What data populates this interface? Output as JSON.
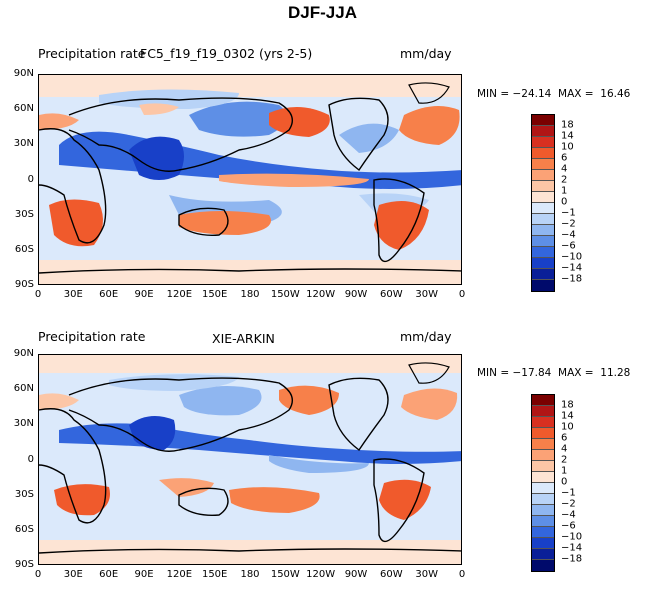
{
  "figure": {
    "title": "DJF-JJA"
  },
  "colorbar": {
    "labels": [
      "18",
      "14",
      "10",
      "6",
      "4",
      "2",
      "1",
      "0",
      "−1",
      "−2",
      "−4",
      "−6",
      "−10",
      "−14",
      "−18"
    ],
    "colors": [
      "#7a0000",
      "#b01515",
      "#d83020",
      "#f05a2c",
      "#f7804a",
      "#fba276",
      "#fcc6a6",
      "#fde4d4",
      "#dbe9fb",
      "#b8d3f7",
      "#8fb6f0",
      "#5e8fe6",
      "#3366dd",
      "#1840c8",
      "#0a1f98",
      "#000a6b"
    ]
  },
  "chart_data": [
    {
      "type": "heatmap",
      "left_label": "Precipitation rate",
      "center_label": "FC5_f19_f19_0302 (yrs 2-5)",
      "units": "mm/day",
      "min": -24.14,
      "max": 16.46,
      "min_text": "MIN = −24.14",
      "max_text": "MAX =  16.46",
      "ylabels": [
        "90N",
        "60N",
        "30N",
        "0",
        "30S",
        "60S",
        "90S"
      ],
      "xlabels": [
        "0",
        "30E",
        "60E",
        "90E",
        "120E",
        "150E",
        "180",
        "150W",
        "120W",
        "90W",
        "60W",
        "30W",
        "0"
      ],
      "ylim": [
        -90,
        90
      ],
      "xlim": [
        0,
        360
      ]
    },
    {
      "type": "heatmap",
      "left_label": "Precipitation rate",
      "center_label": "XIE-ARKIN",
      "units": "mm/day",
      "min": -17.84,
      "max": 11.28,
      "min_text": "MIN = −17.84",
      "max_text": "MAX =  11.28",
      "ylabels": [
        "90N",
        "60N",
        "30N",
        "0",
        "30S",
        "60S",
        "90S"
      ],
      "xlabels": [
        "0",
        "30E",
        "60E",
        "90E",
        "120E",
        "150E",
        "180",
        "150W",
        "120W",
        "90W",
        "60W",
        "30W",
        "0"
      ],
      "ylim": [
        -90,
        90
      ],
      "xlim": [
        0,
        360
      ]
    }
  ]
}
